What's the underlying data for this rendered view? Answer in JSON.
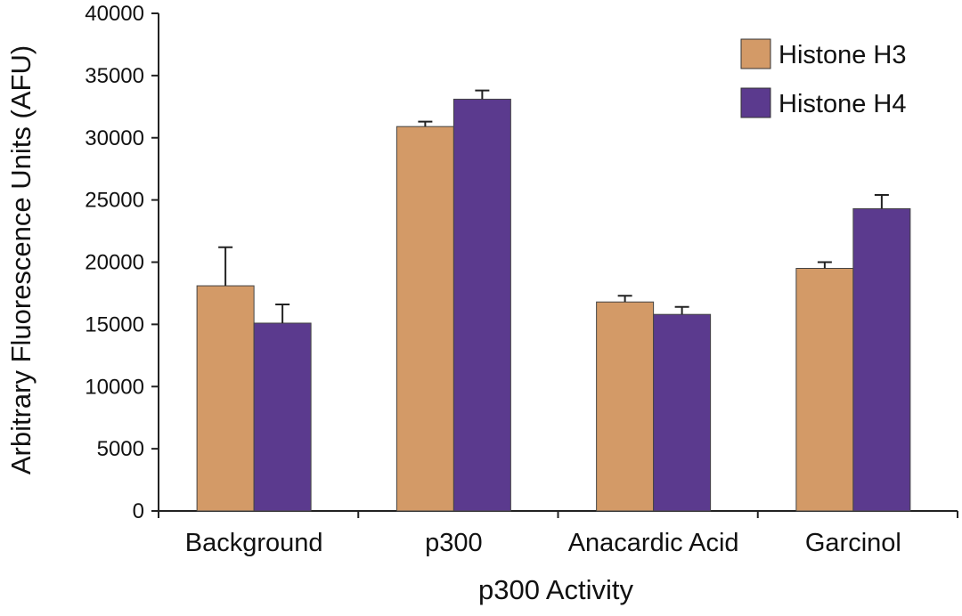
{
  "chart_data": {
    "type": "bar",
    "title": "",
    "xlabel": "p300 Activity",
    "ylabel": "Arbitrary Fluorescence Units (AFU)",
    "ylim": [
      0,
      40000
    ],
    "yticks": [
      0,
      5000,
      10000,
      15000,
      20000,
      25000,
      30000,
      35000,
      40000
    ],
    "categories": [
      "Background",
      "p300",
      "Anacardic Acid",
      "Garcinol"
    ],
    "series": [
      {
        "name": "Histone H3",
        "color": "#d39a67",
        "values": [
          18100,
          30900,
          16800,
          19500
        ],
        "errors": [
          3100,
          400,
          500,
          500
        ]
      },
      {
        "name": "Histone H4",
        "color": "#5b3a8e",
        "values": [
          15100,
          33100,
          15800,
          24300
        ],
        "errors": [
          1500,
          700,
          600,
          1100
        ]
      }
    ],
    "legend_position": "top-right",
    "grid": false,
    "error_bars": true
  }
}
